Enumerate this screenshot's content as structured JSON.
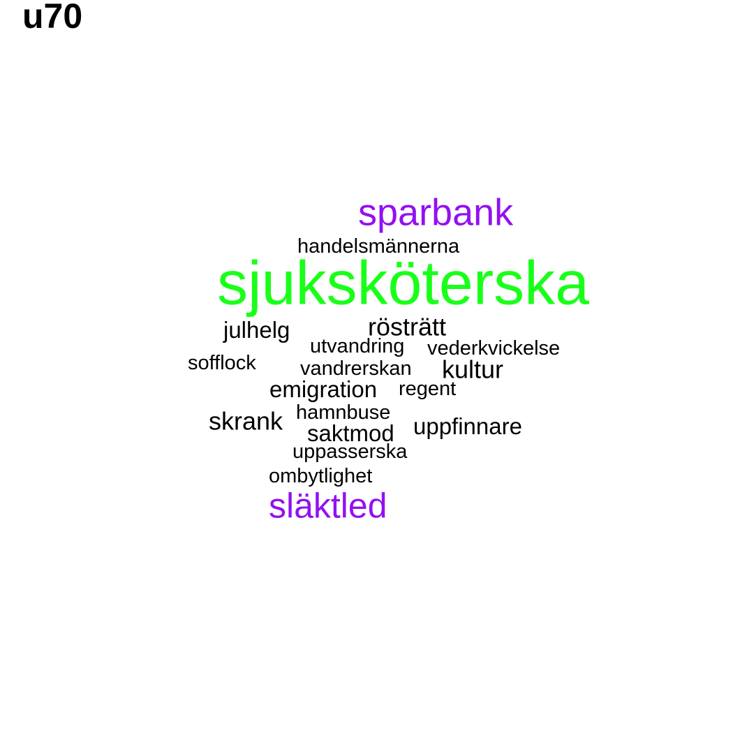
{
  "title": "u70",
  "colors": {
    "background": "#ffffff",
    "highlight_green": "#1aff1a",
    "highlight_purple": "#9210f2",
    "default_word": "#000000"
  },
  "words": [
    {
      "text": "sparbank",
      "color": "#9210f2"
    },
    {
      "text": "handelsmännerna",
      "color": "#000000"
    },
    {
      "text": "sjuksköterska",
      "color": "#1aff1a"
    },
    {
      "text": "rösträtt",
      "color": "#000000"
    },
    {
      "text": "julhelg",
      "color": "#000000"
    },
    {
      "text": "utvandring",
      "color": "#000000"
    },
    {
      "text": "vederkvickelse",
      "color": "#000000"
    },
    {
      "text": "sofflock",
      "color": "#000000"
    },
    {
      "text": "vandrerskan",
      "color": "#000000"
    },
    {
      "text": "kultur",
      "color": "#000000"
    },
    {
      "text": "emigration",
      "color": "#000000"
    },
    {
      "text": "regent",
      "color": "#000000"
    },
    {
      "text": "hamnbuse",
      "color": "#000000"
    },
    {
      "text": "skrank",
      "color": "#000000"
    },
    {
      "text": "saktmod",
      "color": "#000000"
    },
    {
      "text": "uppfinnare",
      "color": "#000000"
    },
    {
      "text": "uppasserska",
      "color": "#000000"
    },
    {
      "text": "ombytlighet",
      "color": "#000000"
    },
    {
      "text": "släktled",
      "color": "#9210f2"
    }
  ]
}
